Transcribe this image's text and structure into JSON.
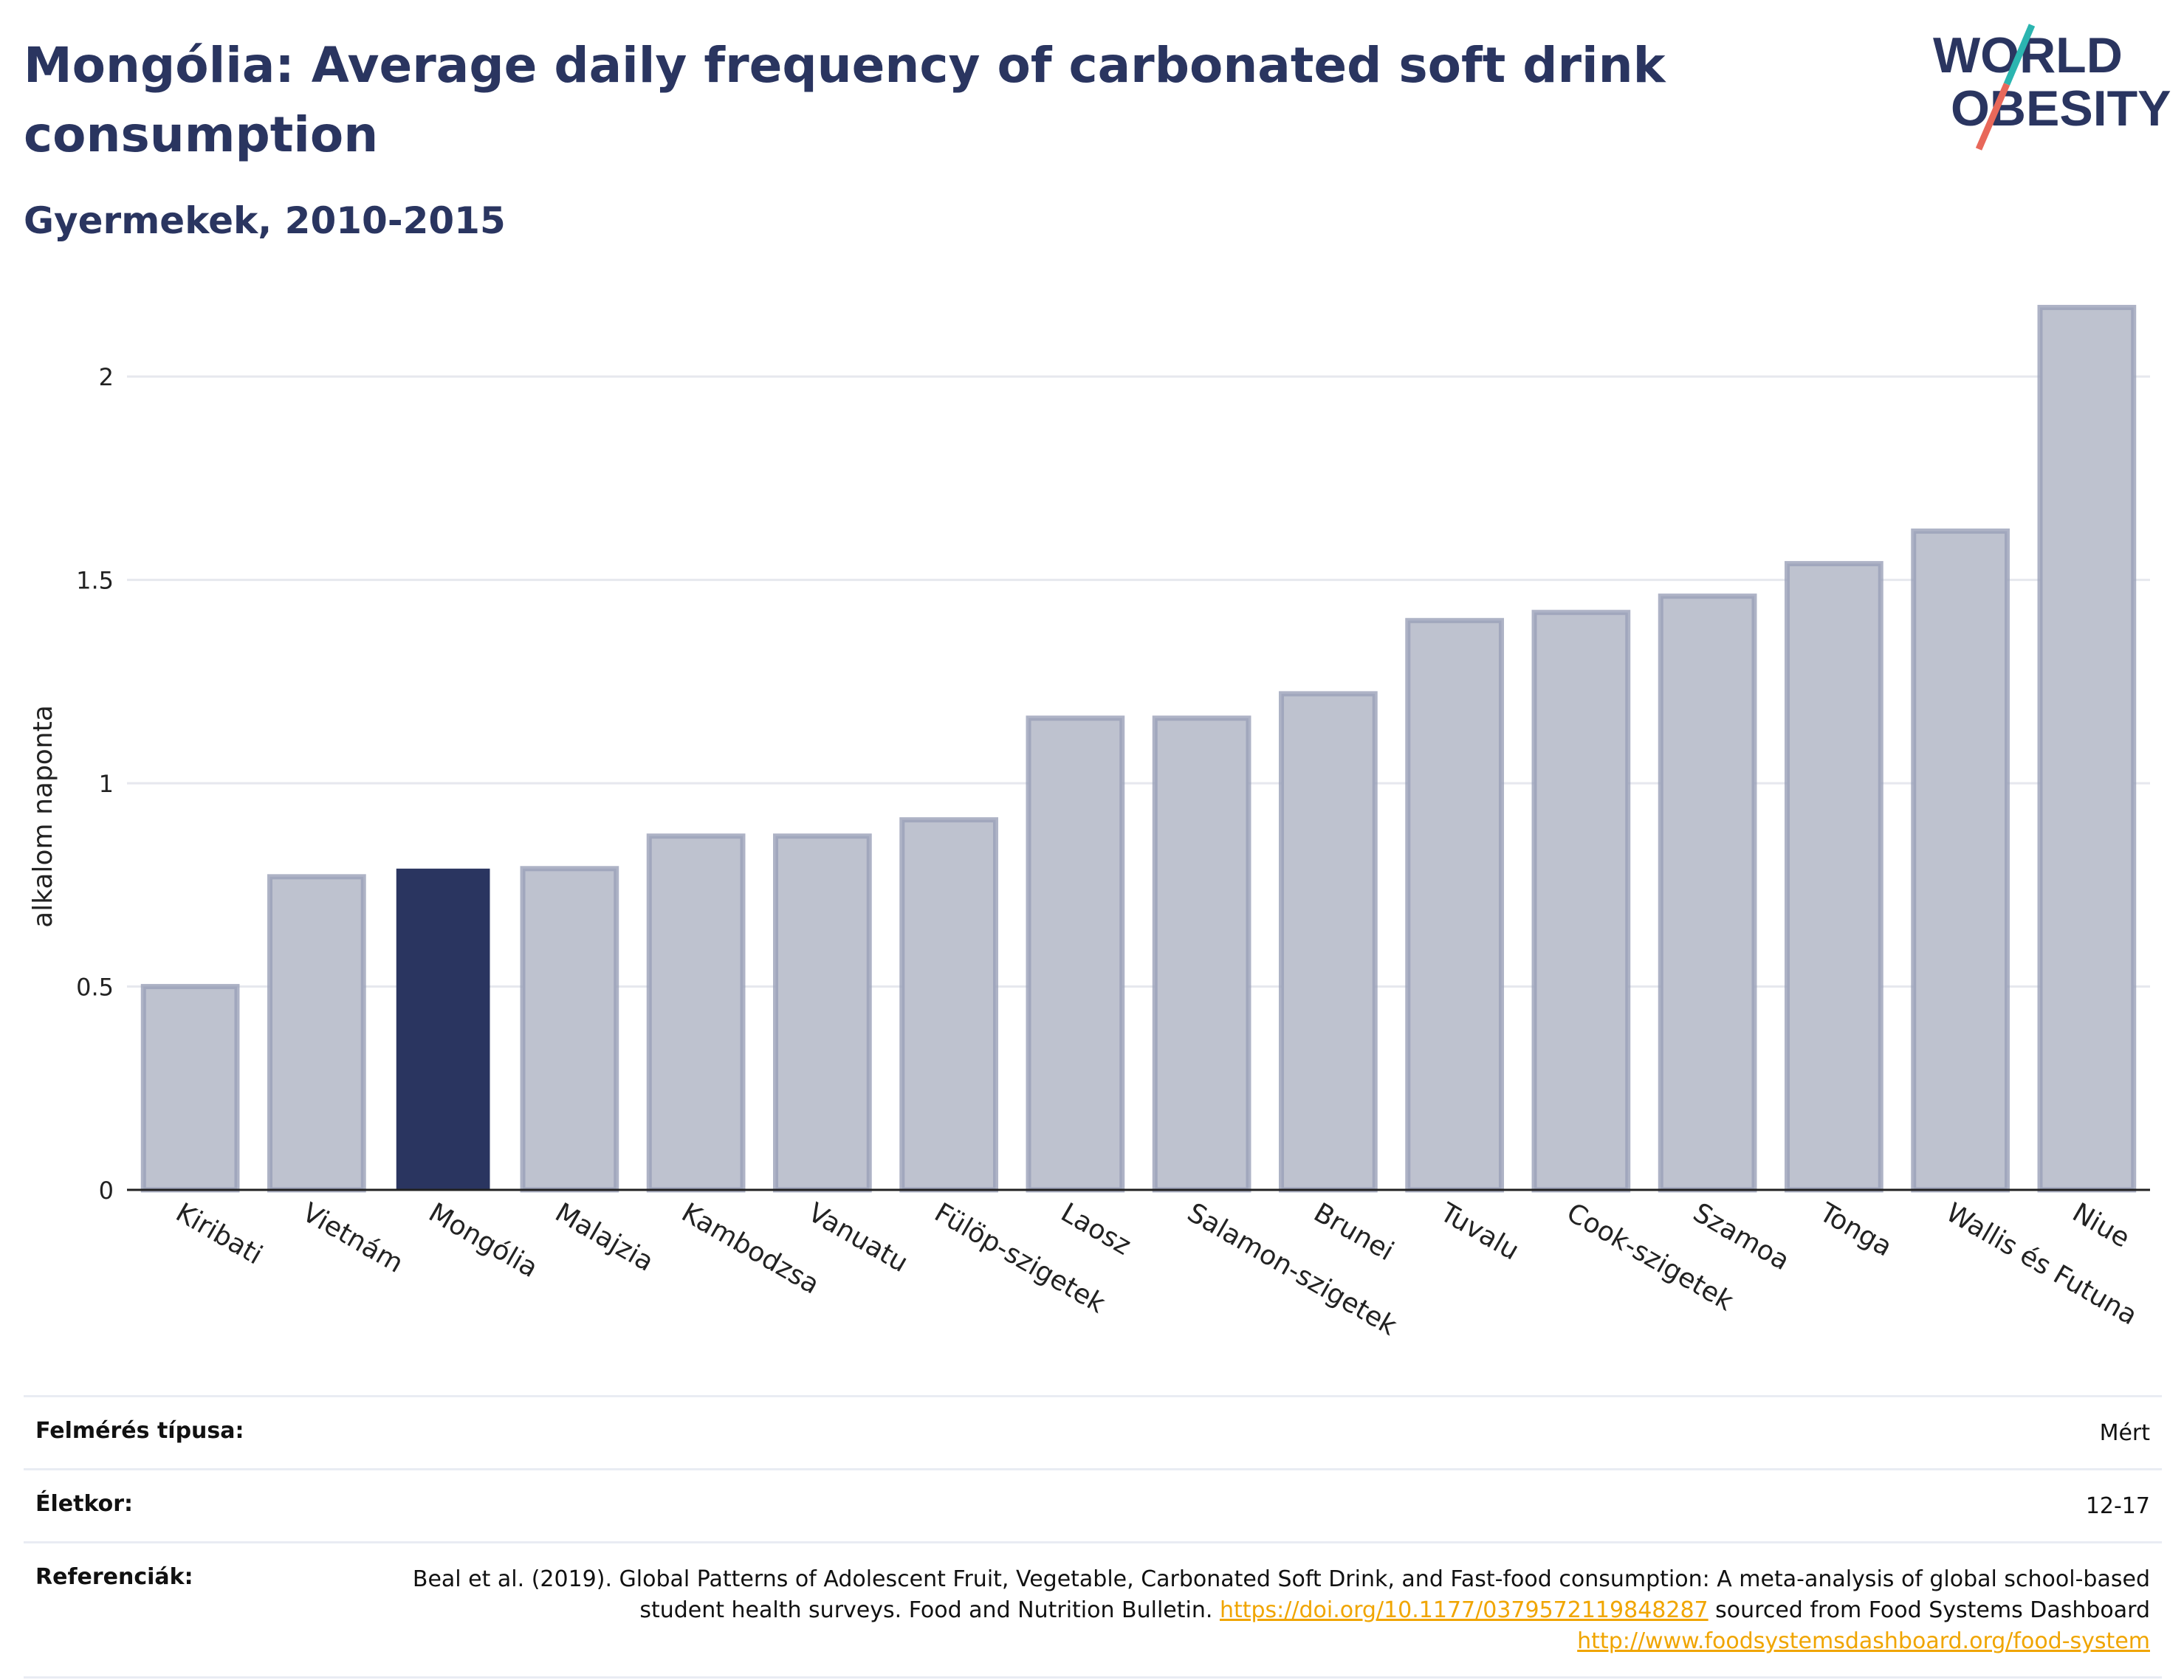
{
  "header": {
    "title": "Mongólia: Average daily frequency of carbonated soft drink consumption",
    "subtitle": "Gyermekek, 2010-2015"
  },
  "logo": {
    "line1": "WORLD",
    "line2": "OBESITY",
    "colors": {
      "text": "#2a3560",
      "slash_teal": "#2bb5b0",
      "slash_red": "#e8685a"
    }
  },
  "chart_data": {
    "type": "bar",
    "categories": [
      "Kiribati",
      "Vietnám",
      "Mongólia",
      "Malajzia",
      "Kambodzsa",
      "Vanuatu",
      "Fülöp-szigetek",
      "Laosz",
      "Salamon-szigetek",
      "Brunei",
      "Tuvalu",
      "Cook-szigetek",
      "Szamoa",
      "Tonga",
      "Wallis és Futuna",
      "Niue"
    ],
    "values": [
      0.5,
      0.77,
      0.79,
      0.79,
      0.87,
      0.87,
      0.91,
      1.16,
      1.16,
      1.22,
      1.4,
      1.42,
      1.46,
      1.54,
      1.62,
      2.17
    ],
    "highlight": "Mongólia",
    "ylabel": "alkalom naponta",
    "xlabel": "",
    "ylim": [
      0,
      2.2
    ],
    "yticks": [
      0,
      0.5,
      1,
      1.5,
      2
    ],
    "ytick_labels": [
      "0",
      "0.5",
      "1",
      "1.5",
      "2"
    ],
    "grid": true,
    "colors": {
      "bar": "#bec2cf",
      "bar_edge": "#9aa0b8",
      "highlight": "#2a3560",
      "axis_text": "#222222",
      "grid": "#e6e8ee"
    }
  },
  "info": {
    "survey_label": "Felmérés típusa:",
    "survey_value": "Mért",
    "age_label": "Életkor:",
    "age_value": "12-17",
    "ref_label": "Referenciák:",
    "ref_text1": "Beal et al. (2019). Global Patterns of Adolescent Fruit, Vegetable, Carbonated Soft Drink, and Fast-food consumption: A meta-analysis of global school-based student health surveys. Food and Nutrition Bulletin.",
    "ref_link1": "https://doi.org/10.1177/0379572119848287",
    "ref_text2": "sourced from Food Systems Dashboard",
    "ref_link2": "http://www.foodsystemsdashboard.org/food-system"
  }
}
